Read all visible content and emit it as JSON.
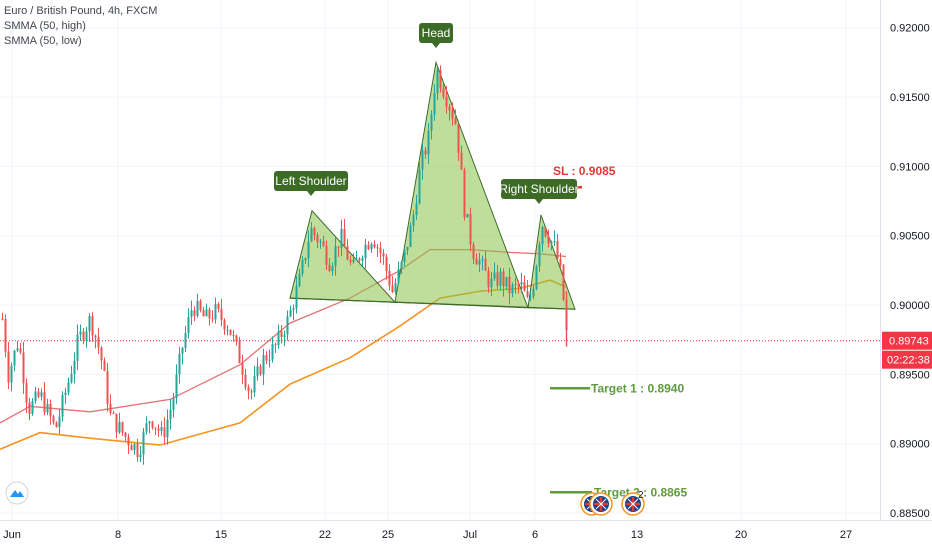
{
  "legend": {
    "symbol": "Euro / British Pound, 4h, FXCM",
    "indicator1": "SMMA (50, high)",
    "indicator2": "SMMA (50, low)"
  },
  "price_axis": {
    "ticks": [
      "0.92000",
      "0.91500",
      "0.91000",
      "0.90500",
      "0.90000",
      "0.89500",
      "0.89000",
      "0.88500"
    ],
    "last_price": "0.89743",
    "countdown": "02:22:38"
  },
  "time_axis": {
    "ticks": [
      "Jun",
      "8",
      "15",
      "22",
      "25",
      "Jul",
      "6",
      "13",
      "20",
      "27"
    ]
  },
  "annotations": {
    "head": "Head",
    "left_shoulder": "Left Shoulder",
    "right_shoulder": "Right Shoulder",
    "stop_loss": "SL : 0.9085",
    "target1": "Target 1 : 0.8940",
    "target2": "Target 2 : 0.8865"
  },
  "events_badge_count": "2",
  "colors": {
    "bull": "#26a69a",
    "bear": "#ef5350",
    "smma_high": "#e57373",
    "smma_low": "#f7931e",
    "pattern_fill": "#8bc34a",
    "label_bg": "#3c6b25",
    "sl_red": "#e53935",
    "target_green": "#5d9b3d",
    "last_price_bg": "#f23645"
  },
  "chart_data": {
    "type": "candlestick",
    "title": "Euro / British Pound, 4h, FXCM",
    "ylim": [
      0.8845,
      0.922
    ],
    "last_price": 0.89743,
    "smma_high_path": [
      [
        0,
        0.8915
      ],
      [
        30,
        0.8927
      ],
      [
        90,
        0.8923
      ],
      [
        170,
        0.8932
      ],
      [
        240,
        0.8957
      ],
      [
        290,
        0.8987
      ],
      [
        350,
        0.9005
      ],
      [
        400,
        0.9025
      ],
      [
        430,
        0.904
      ],
      [
        470,
        0.904
      ],
      [
        510,
        0.9038
      ],
      [
        540,
        0.9037
      ],
      [
        566,
        0.9035
      ]
    ],
    "smma_low_path": [
      [
        0,
        0.8896
      ],
      [
        40,
        0.8908
      ],
      [
        90,
        0.8904
      ],
      [
        160,
        0.8899
      ],
      [
        240,
        0.8915
      ],
      [
        290,
        0.8943
      ],
      [
        350,
        0.8962
      ],
      [
        400,
        0.8985
      ],
      [
        440,
        0.9005
      ],
      [
        480,
        0.901
      ],
      [
        520,
        0.9012
      ],
      [
        550,
        0.9018
      ],
      [
        566,
        0.9013
      ]
    ],
    "pattern": {
      "neckline": [
        [
          290,
          0.9005
        ],
        [
          575,
          0.8997
        ]
      ],
      "left_shoulder": [
        [
          290,
          0.9005
        ],
        [
          312,
          0.9068
        ],
        [
          395,
          0.9002
        ]
      ],
      "head": [
        [
          395,
          0.9002
        ],
        [
          436,
          0.9175
        ],
        [
          528,
          0.8998
        ]
      ],
      "right_shoulder": [
        [
          528,
          0.8998
        ],
        [
          541,
          0.9065
        ],
        [
          575,
          0.8997
        ]
      ]
    },
    "levels": {
      "stop_loss": 0.9085,
      "target1": 0.894,
      "target2": 0.8865
    }
  }
}
